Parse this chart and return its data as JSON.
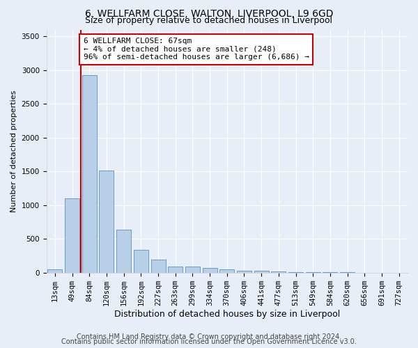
{
  "title1": "6, WELLFARM CLOSE, WALTON, LIVERPOOL, L9 6GD",
  "title2": "Size of property relative to detached houses in Liverpool",
  "xlabel": "Distribution of detached houses by size in Liverpool",
  "ylabel": "Number of detached properties",
  "categories": [
    "13sqm",
    "49sqm",
    "84sqm",
    "120sqm",
    "156sqm",
    "192sqm",
    "227sqm",
    "263sqm",
    "299sqm",
    "334sqm",
    "370sqm",
    "406sqm",
    "441sqm",
    "477sqm",
    "513sqm",
    "549sqm",
    "584sqm",
    "620sqm",
    "656sqm",
    "691sqm",
    "727sqm"
  ],
  "values": [
    50,
    1100,
    2920,
    1510,
    640,
    340,
    190,
    95,
    90,
    65,
    50,
    30,
    25,
    15,
    10,
    5,
    5,
    3,
    2,
    2,
    2
  ],
  "bar_color": "#b8cfe8",
  "bar_edge_color": "#5a8fc3",
  "vline_color": "#cc0000",
  "annotation_line1": "6 WELLFARM CLOSE: 67sqm",
  "annotation_line2": "← 4% of detached houses are smaller (248)",
  "annotation_line3": "96% of semi-detached houses are larger (6,686) →",
  "annotation_box_color": "#ffffff",
  "annotation_box_edge_color": "#cc0000",
  "ylim": [
    0,
    3600
  ],
  "yticks": [
    0,
    500,
    1000,
    1500,
    2000,
    2500,
    3000,
    3500
  ],
  "footer1": "Contains HM Land Registry data © Crown copyright and database right 2024.",
  "footer2": "Contains public sector information licensed under the Open Government Licence v3.0.",
  "background_color": "#e8eef8",
  "plot_bg_color": "#e8eef8",
  "grid_color": "#ffffff",
  "title1_fontsize": 10,
  "title2_fontsize": 9,
  "xlabel_fontsize": 9,
  "ylabel_fontsize": 8,
  "tick_fontsize": 7.5,
  "annotation_fontsize": 8,
  "footer_fontsize": 7
}
